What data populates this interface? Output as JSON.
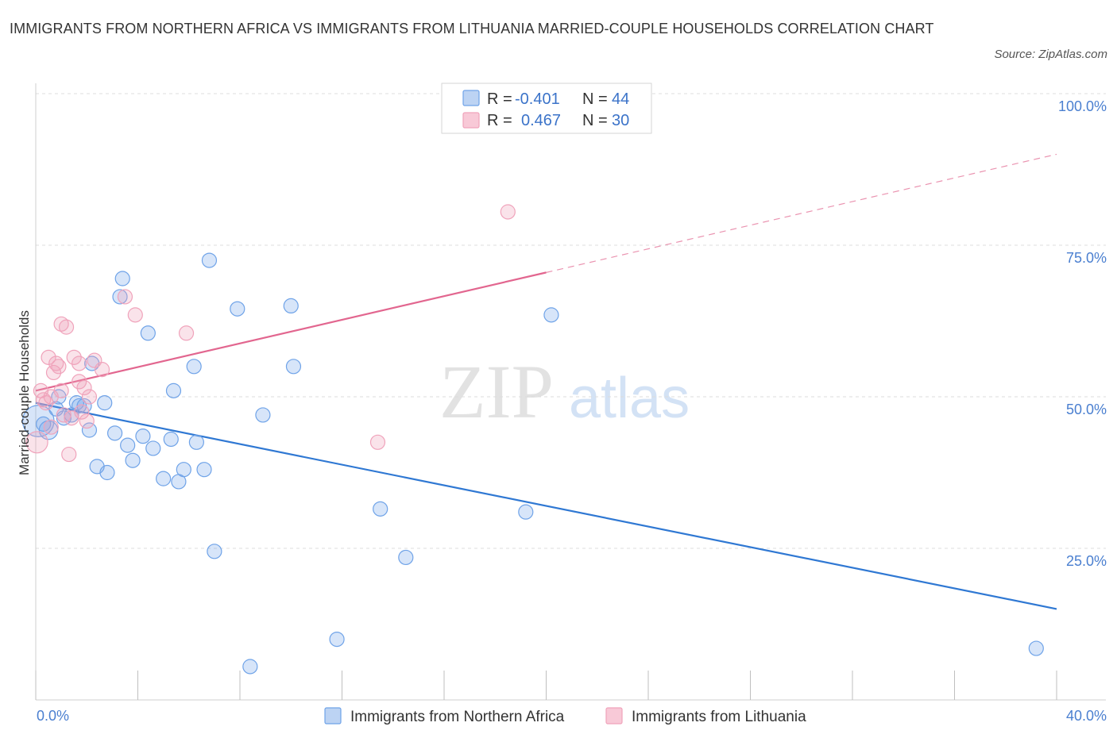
{
  "title": "IMMIGRANTS FROM NORTHERN AFRICA VS IMMIGRANTS FROM LITHUANIA MARRIED-COUPLE HOUSEHOLDS CORRELATION CHART",
  "source": "Source: ZipAtlas.com",
  "watermark": {
    "zip": "ZIP",
    "atlas": "atlas"
  },
  "legend_top": [
    {
      "r_label": "R =",
      "r_value": "-0.401",
      "n_label": "N =",
      "n_value": "44",
      "color": "#6fa3e8"
    },
    {
      "r_label": "R =",
      "r_value": "0.467",
      "n_label": "N =",
      "n_value": "30",
      "color": "#f0a3bb"
    }
  ],
  "chart_data": {
    "type": "scatter",
    "title": "IMMIGRANTS FROM NORTHERN AFRICA VS IMMIGRANTS FROM LITHUANIA MARRIED-COUPLE HOUSEHOLDS CORRELATION CHART",
    "xlabel": "",
    "ylabel": "Married-couple Households",
    "xlim": [
      0,
      40
    ],
    "ylim": [
      0,
      100
    ],
    "x_tick_labels": [
      "0.0%",
      "40.0%"
    ],
    "y_tick_labels": [
      "100.0%",
      "75.0%",
      "50.0%",
      "25.0%"
    ],
    "y_ticks": [
      100,
      75,
      50,
      25
    ],
    "grid": true,
    "legend": "bottom-center",
    "series": [
      {
        "name": "Immigrants from Northern Africa",
        "color": "#6fa3e8",
        "line_color": "#2f78d3",
        "trend": {
          "x": [
            0,
            40
          ],
          "y": [
            49.0,
            15.0
          ],
          "dashed_extension": false
        },
        "points": [
          {
            "x": 0.1,
            "y": 46.0,
            "s": 2.2
          },
          {
            "x": 0.5,
            "y": 44.5,
            "s": 1.3
          },
          {
            "x": 0.8,
            "y": 48.0,
            "s": 1
          },
          {
            "x": 0.9,
            "y": 50.0,
            "s": 1
          },
          {
            "x": 1.1,
            "y": 46.5,
            "s": 1
          },
          {
            "x": 1.4,
            "y": 47.0,
            "s": 1
          },
          {
            "x": 1.6,
            "y": 49.0,
            "s": 1
          },
          {
            "x": 1.9,
            "y": 48.5,
            "s": 1
          },
          {
            "x": 2.1,
            "y": 44.5,
            "s": 1
          },
          {
            "x": 2.2,
            "y": 55.5,
            "s": 1
          },
          {
            "x": 2.4,
            "y": 38.5,
            "s": 1
          },
          {
            "x": 2.7,
            "y": 49.0,
            "s": 1
          },
          {
            "x": 2.8,
            "y": 37.5,
            "s": 1
          },
          {
            "x": 3.1,
            "y": 44.0,
            "s": 1
          },
          {
            "x": 3.4,
            "y": 69.5,
            "s": 1
          },
          {
            "x": 3.3,
            "y": 66.5,
            "s": 1
          },
          {
            "x": 3.6,
            "y": 42.0,
            "s": 1
          },
          {
            "x": 3.8,
            "y": 39.5,
            "s": 1
          },
          {
            "x": 4.2,
            "y": 43.5,
            "s": 1
          },
          {
            "x": 4.4,
            "y": 60.5,
            "s": 1
          },
          {
            "x": 4.6,
            "y": 41.5,
            "s": 1
          },
          {
            "x": 5.0,
            "y": 36.5,
            "s": 1
          },
          {
            "x": 5.3,
            "y": 43.0,
            "s": 1
          },
          {
            "x": 5.6,
            "y": 36.0,
            "s": 1
          },
          {
            "x": 5.8,
            "y": 38.0,
            "s": 1
          },
          {
            "x": 5.4,
            "y": 51.0,
            "s": 1
          },
          {
            "x": 6.3,
            "y": 42.5,
            "s": 1
          },
          {
            "x": 6.2,
            "y": 55.0,
            "s": 1
          },
          {
            "x": 6.6,
            "y": 38.0,
            "s": 1
          },
          {
            "x": 6.8,
            "y": 72.5,
            "s": 1
          },
          {
            "x": 7.0,
            "y": 24.5,
            "s": 1
          },
          {
            "x": 7.9,
            "y": 64.5,
            "s": 1
          },
          {
            "x": 8.4,
            "y": 5.5,
            "s": 1
          },
          {
            "x": 8.9,
            "y": 47.0,
            "s": 1
          },
          {
            "x": 10.0,
            "y": 65.0,
            "s": 1
          },
          {
            "x": 10.1,
            "y": 55.0,
            "s": 1
          },
          {
            "x": 11.8,
            "y": 10.0,
            "s": 1
          },
          {
            "x": 13.5,
            "y": 31.5,
            "s": 1
          },
          {
            "x": 14.5,
            "y": 23.5,
            "s": 1
          },
          {
            "x": 19.2,
            "y": 31.0,
            "s": 1
          },
          {
            "x": 20.2,
            "y": 63.5,
            "s": 1
          },
          {
            "x": 39.2,
            "y": 8.5,
            "s": 1
          },
          {
            "x": 0.3,
            "y": 45.5,
            "s": 1
          },
          {
            "x": 1.7,
            "y": 48.5,
            "s": 1
          }
        ]
      },
      {
        "name": "Immigrants from Lithuania",
        "color": "#f0a3bb",
        "line_color": "#e2668f",
        "trend": {
          "x": [
            0,
            40
          ],
          "y": [
            51.0,
            90.0
          ],
          "solid_until_x": 20.0,
          "dashed_extension": true
        },
        "points": [
          {
            "x": 0.05,
            "y": 42.5,
            "s": 1.5
          },
          {
            "x": 0.2,
            "y": 51.0,
            "s": 1
          },
          {
            "x": 0.3,
            "y": 49.5,
            "s": 1
          },
          {
            "x": 0.5,
            "y": 56.5,
            "s": 1
          },
          {
            "x": 0.6,
            "y": 50.0,
            "s": 1
          },
          {
            "x": 0.7,
            "y": 54.0,
            "s": 1
          },
          {
            "x": 0.8,
            "y": 55.5,
            "s": 1
          },
          {
            "x": 0.9,
            "y": 55.0,
            "s": 1
          },
          {
            "x": 1.0,
            "y": 51.0,
            "s": 1
          },
          {
            "x": 1.0,
            "y": 62.0,
            "s": 1
          },
          {
            "x": 1.2,
            "y": 61.5,
            "s": 1
          },
          {
            "x": 1.3,
            "y": 40.5,
            "s": 1
          },
          {
            "x": 1.4,
            "y": 46.5,
            "s": 1
          },
          {
            "x": 1.5,
            "y": 56.5,
            "s": 1
          },
          {
            "x": 1.7,
            "y": 52.5,
            "s": 1
          },
          {
            "x": 1.7,
            "y": 55.5,
            "s": 1
          },
          {
            "x": 1.8,
            "y": 47.5,
            "s": 1
          },
          {
            "x": 1.9,
            "y": 51.5,
            "s": 1
          },
          {
            "x": 2.1,
            "y": 50.0,
            "s": 1
          },
          {
            "x": 2.3,
            "y": 56.0,
            "s": 1
          },
          {
            "x": 2.6,
            "y": 54.5,
            "s": 1
          },
          {
            "x": 3.5,
            "y": 66.5,
            "s": 1
          },
          {
            "x": 3.9,
            "y": 63.5,
            "s": 1
          },
          {
            "x": 5.9,
            "y": 60.5,
            "s": 1
          },
          {
            "x": 13.4,
            "y": 42.5,
            "s": 1
          },
          {
            "x": 18.5,
            "y": 80.5,
            "s": 1
          },
          {
            "x": 0.4,
            "y": 49.0,
            "s": 1
          },
          {
            "x": 1.1,
            "y": 47.0,
            "s": 1
          },
          {
            "x": 2.0,
            "y": 46.0,
            "s": 1
          },
          {
            "x": 0.6,
            "y": 45.0,
            "s": 1
          }
        ]
      }
    ]
  }
}
